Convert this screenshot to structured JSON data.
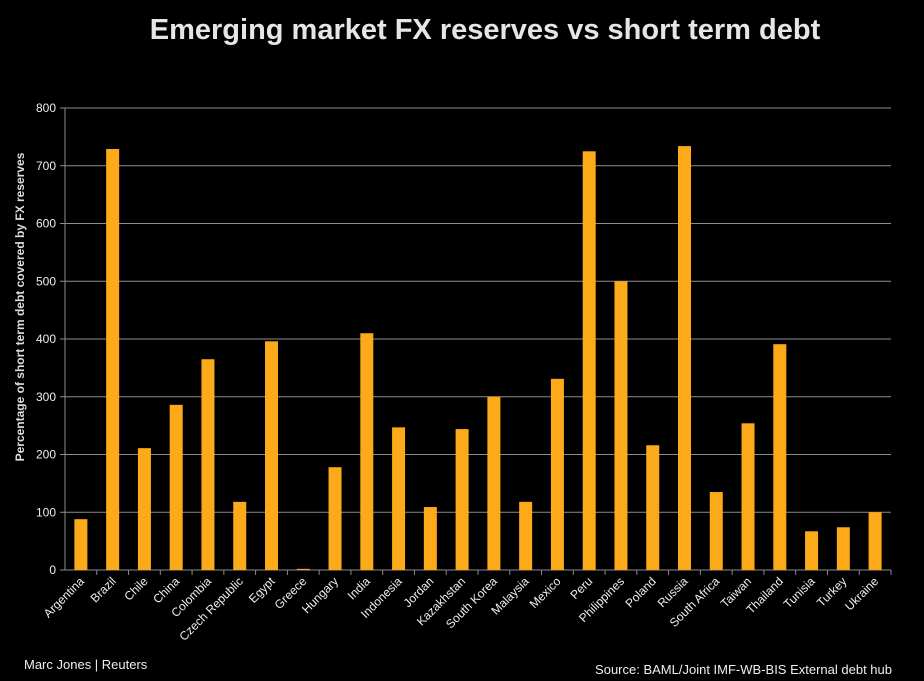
{
  "chart_data": {
    "type": "bar",
    "title": "Emerging market FX reserves vs short term debt",
    "xlabel": "",
    "ylabel": "Percentage of short term debt covered by FX reserves",
    "ylim": [
      0,
      800
    ],
    "yticks": [
      0,
      100,
      200,
      300,
      400,
      500,
      600,
      700,
      800
    ],
    "grid": true,
    "bar_color": "#fcaa1a",
    "categories": [
      "Argentina",
      "Brazil",
      "Chile",
      "China",
      "Colombia",
      "Czech Republic",
      "Egypt",
      "Greece",
      "Hungary",
      "India",
      "Indonesia",
      "Jordan",
      "Kazakhstan",
      "South Korea",
      "Malaysia",
      "Mexico",
      "Peru",
      "Philippines",
      "Poland",
      "Russia",
      "South Africa",
      "Taiwan",
      "Thailand",
      "Tunisia",
      "Turkey",
      "Ukraine"
    ],
    "values": [
      88,
      729,
      211,
      286,
      365,
      118,
      396,
      2,
      178,
      410,
      247,
      109,
      244,
      300,
      118,
      331,
      725,
      500,
      216,
      734,
      135,
      254,
      391,
      67,
      74,
      100
    ]
  },
  "footer": {
    "credit": "Marc Jones | Reuters",
    "source": "Source:   BAML/Joint IMF-WB-BIS External debt hub"
  }
}
